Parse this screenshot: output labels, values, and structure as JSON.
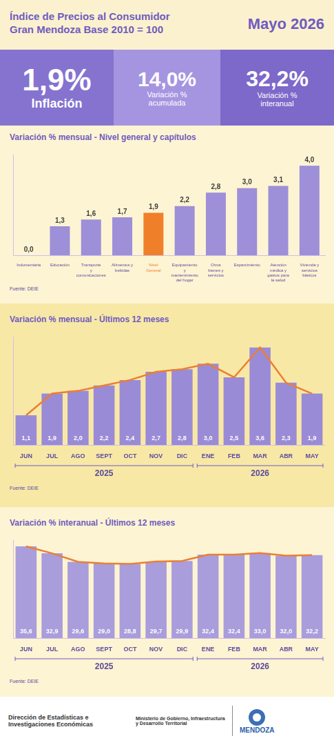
{
  "header": {
    "title": "Índice de Precios al Consumidor",
    "subtitle": "Gran Mendoza Base 2010 = 100",
    "period": "Mayo 2026"
  },
  "kpis": [
    {
      "value": "1,9%",
      "label": "Inflación"
    },
    {
      "value": "14,0%",
      "label": "Variación % acumulada"
    },
    {
      "value": "32,2%",
      "label": "Variación % interanual"
    }
  ],
  "chart_data": [
    {
      "type": "bar",
      "title": "Variación % mensual - Nivel general y capítulos",
      "categories": [
        "Indumentaria",
        "Educación",
        "Transporte y comunicaciones",
        "Alimentos y bebidas",
        "Nivel General",
        "Equipamiento y mantenimiento del hogar",
        "Otros bienes y servicios",
        "Esparcimiento",
        "Atención médica y gastos para la salud",
        "Vivienda y servicios básicos"
      ],
      "values": [
        0.0,
        1.3,
        1.6,
        1.7,
        1.9,
        2.2,
        2.8,
        3.0,
        3.1,
        4.0
      ],
      "value_labels": [
        "0,0",
        "1,3",
        "1,6",
        "1,7",
        "1,9",
        "2,2",
        "2,8",
        "3,0",
        "3,1",
        "4,0"
      ],
      "colors": [
        "#9d8fd8",
        "#9d8fd8",
        "#9d8fd8",
        "#9d8fd8",
        "#f07f2a",
        "#9d8fd8",
        "#9d8fd8",
        "#9d8fd8",
        "#9d8fd8",
        "#9d8fd8"
      ],
      "data_labels": true,
      "ylim": [
        0,
        4.5
      ],
      "tick_labels": "x",
      "grid": false,
      "source": "Fuente: DEIE"
    },
    {
      "type": "bar",
      "title": "Variación % mensual - Últimos 12 meses",
      "categories": [
        "JUN",
        "JUL",
        "AGO",
        "SEPT",
        "OCT",
        "NOV",
        "DIC",
        "ENE",
        "FEB",
        "MAR",
        "ABR",
        "MAY"
      ],
      "series": [
        {
          "type": "bar",
          "color": "#9a8bd6",
          "values": [
            1.1,
            1.9,
            2.0,
            2.2,
            2.4,
            2.7,
            2.8,
            3.0,
            2.5,
            3.6,
            2.3,
            1.9
          ],
          "value_labels": [
            "1,1",
            "1,9",
            "2,0",
            "2,2",
            "2,4",
            "2,7",
            "2,8",
            "3,0",
            "2,5",
            "3,6",
            "2,3",
            "1,9"
          ]
        },
        {
          "type": "line",
          "color": "#ea7f33",
          "marker": "none",
          "values": [
            1.1,
            1.9,
            2.0,
            2.2,
            2.4,
            2.7,
            2.8,
            3.0,
            2.5,
            3.6,
            2.3,
            1.9
          ]
        }
      ],
      "data_labels": true,
      "ylim": [
        0,
        4
      ],
      "tick_labels": "x",
      "grid": false,
      "groups": [
        {
          "label": "2025",
          "from": "JUN",
          "to": "DIC"
        },
        {
          "label": "2026",
          "from": "ENE",
          "to": "MAY"
        }
      ],
      "source": "Fuente: DEIE"
    },
    {
      "type": "bar",
      "title": "Variación % interanual - Últimos 12 meses",
      "categories": [
        "JUN",
        "JUL",
        "AGO",
        "SEPT",
        "OCT",
        "NOV",
        "DIC",
        "ENE",
        "FEB",
        "MAR",
        "ABR",
        "MAY"
      ],
      "series": [
        {
          "type": "bar",
          "color": "#a99ddc",
          "values": [
            35.6,
            32.9,
            29.6,
            29.0,
            28.8,
            29.7,
            29.9,
            32.4,
            32.4,
            33.0,
            32.0,
            32.2
          ],
          "value_labels": [
            "35,6",
            "32,9",
            "29,6",
            "29,0",
            "28,8",
            "29,7",
            "29,9",
            "32,4",
            "32,4",
            "33,0",
            "32,0",
            "32,2"
          ]
        },
        {
          "type": "line",
          "color": "#ea7f33",
          "marker": "none",
          "values": [
            35.6,
            32.9,
            29.6,
            29.0,
            28.8,
            29.7,
            29.9,
            32.4,
            32.4,
            33.0,
            32.0,
            32.2
          ]
        }
      ],
      "data_labels": true,
      "ylim": [
        0,
        38
      ],
      "tick_labels": "x",
      "grid": false,
      "groups": [
        {
          "label": "2025",
          "from": "JUN",
          "to": "DIC"
        },
        {
          "label": "2026",
          "from": "ENE",
          "to": "MAY"
        }
      ],
      "source": "Fuente: DEIE"
    }
  ],
  "footer": {
    "left": "Dirección de Estadísticas e Investigaciones Económicas",
    "center": "Ministerio de Gobierno, Infraestructura y Desarrollo Territorial",
    "right": "MENDOZA"
  }
}
